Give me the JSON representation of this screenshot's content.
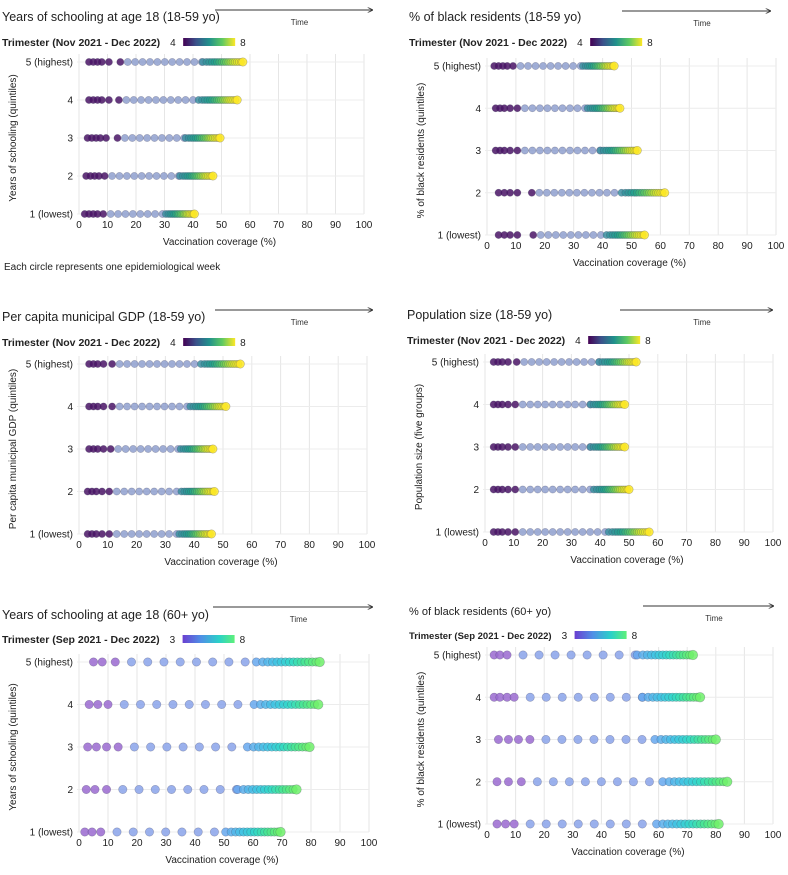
{
  "note": "Each circle represents one epidemiological week",
  "time_label": "Time",
  "chart_data": [
    {
      "type": "scatter",
      "title": "Years of schooling at age 18 (18-59 yo)",
      "ylabel": "Years of schooling (quintiles)",
      "xlabel": "Vaccination coverage (%)",
      "legend_title": "Trimester (Nov 2021 - Dec 2022)",
      "legend_min": "4",
      "legend_max": "8",
      "palette": "viridis",
      "xlim": [
        0,
        100
      ],
      "xticks": [
        0,
        10,
        20,
        30,
        40,
        50,
        60,
        70,
        80,
        90,
        100
      ],
      "categories": [
        "5 (highest)",
        "4",
        "3",
        "2",
        "1 (lowest)"
      ],
      "series": [
        {
          "name": "5 (highest)",
          "start": 3.5,
          "end": 57.5,
          "early": [
            3.5,
            5,
            6.5,
            8,
            10.5,
            14.5
          ]
        },
        {
          "name": "4",
          "start": 3.5,
          "end": 55.5,
          "early": [
            3.5,
            5,
            6.5,
            8,
            10.5,
            14
          ]
        },
        {
          "name": "3",
          "start": 3,
          "end": 49.5,
          "early": [
            3,
            4.5,
            6,
            7.5,
            9.5,
            13.5
          ]
        },
        {
          "name": "2",
          "start": 2.5,
          "end": 47,
          "early": [
            2.5,
            4,
            5.5,
            7,
            9
          ]
        },
        {
          "name": "1 (lowest)",
          "start": 2,
          "end": 40.5,
          "early": [
            2,
            3.5,
            5,
            6.5,
            8.5
          ]
        }
      ]
    },
    {
      "type": "scatter",
      "title": "% of black residents (18-59 yo)",
      "ylabel": "% of black residents (quintiles)",
      "xlabel": "Vaccination coverage (%)",
      "legend_title": "Trimester (Nov 2021 - Dec 2022)",
      "legend_min": "4",
      "legend_max": "8",
      "palette": "viridis",
      "xlim": [
        0,
        100
      ],
      "xticks": [
        0,
        10,
        20,
        30,
        40,
        50,
        60,
        70,
        80,
        90,
        100
      ],
      "categories": [
        "5 (highest)",
        "4",
        "3",
        "2",
        "1 (lowest)"
      ],
      "series": [
        {
          "name": "5 (highest)",
          "start": 2.5,
          "end": 44,
          "early": [
            2.5,
            4,
            5.5,
            7,
            9
          ]
        },
        {
          "name": "4",
          "start": 3,
          "end": 46,
          "early": [
            3,
            4.5,
            6,
            8,
            10.5
          ]
        },
        {
          "name": "3",
          "start": 3,
          "end": 52,
          "early": [
            3,
            4.5,
            6,
            8,
            10.5
          ]
        },
        {
          "name": "2",
          "start": 4,
          "end": 61.5,
          "early": [
            4,
            6,
            8,
            10.5,
            15.5
          ]
        },
        {
          "name": "1 (lowest)",
          "start": 4,
          "end": 54.5,
          "early": [
            4,
            6,
            8,
            10.5,
            16
          ]
        }
      ]
    },
    {
      "type": "scatter",
      "title": "Per capita municipal GDP (18-59 yo)",
      "ylabel": "Per capita municipal GDP (quintiles)",
      "xlabel": "Vaccination coverage (%)",
      "legend_title": "Trimester (Nov 2021 - Dec 2022)",
      "legend_min": "4",
      "legend_max": "8",
      "palette": "viridis",
      "xlim": [
        0,
        100
      ],
      "xticks": [
        0,
        10,
        20,
        30,
        40,
        50,
        60,
        70,
        80,
        90,
        100
      ],
      "categories": [
        "5 (highest)",
        "4",
        "3",
        "2",
        "1 (lowest)"
      ],
      "series": [
        {
          "name": "5 (highest)",
          "start": 3.5,
          "end": 56,
          "early": [
            3.5,
            5,
            6.5,
            8.5,
            11.5
          ]
        },
        {
          "name": "4",
          "start": 3.5,
          "end": 51,
          "early": [
            3.5,
            5,
            6.5,
            8.5,
            11.5
          ]
        },
        {
          "name": "3",
          "start": 3.5,
          "end": 46.5,
          "early": [
            3.5,
            5,
            6.5,
            8.5,
            11
          ]
        },
        {
          "name": "2",
          "start": 3,
          "end": 47,
          "early": [
            3,
            4.5,
            6,
            8,
            10.5
          ]
        },
        {
          "name": "1 (lowest)",
          "start": 3,
          "end": 46,
          "early": [
            3,
            4.5,
            6,
            8,
            10.5
          ]
        }
      ]
    },
    {
      "type": "scatter",
      "title": "Population size (18-59 yo)",
      "ylabel": "Population size (five groups)",
      "xlabel": "Vaccination coverage (%)",
      "legend_title": "Trimester (Nov 2021 - Dec 2022)",
      "legend_min": "4",
      "legend_max": "8",
      "palette": "viridis",
      "xlim": [
        0,
        100
      ],
      "xticks": [
        0,
        10,
        20,
        30,
        40,
        50,
        60,
        70,
        80,
        90,
        100
      ],
      "categories": [
        "5 (highest)",
        "4",
        "3",
        "2",
        "1 (lowest)"
      ],
      "series": [
        {
          "name": "5 (highest)",
          "start": 3,
          "end": 52.5,
          "early": [
            3,
            4.5,
            6,
            8,
            11
          ]
        },
        {
          "name": "4",
          "start": 3,
          "end": 48.5,
          "early": [
            3,
            4.5,
            6,
            8,
            10.5
          ]
        },
        {
          "name": "3",
          "start": 3,
          "end": 48.5,
          "early": [
            3,
            4.5,
            6,
            8,
            10.5
          ]
        },
        {
          "name": "2",
          "start": 3,
          "end": 50,
          "early": [
            3,
            4.5,
            6,
            8,
            10.5
          ]
        },
        {
          "name": "1 (lowest)",
          "start": 3,
          "end": 57,
          "early": [
            3,
            4.5,
            6,
            8,
            10.5
          ]
        }
      ]
    },
    {
      "type": "scatter",
      "title": "Years of schooling at age 18 (60+ yo)",
      "ylabel": "Years of schooling (quintiles)",
      "xlabel": "Vaccination coverage (%)",
      "legend_title": "Trimester (Sep 2021 - Dec 2022)",
      "legend_min": "3",
      "legend_max": "8",
      "palette": "cool",
      "xlim": [
        0,
        100
      ],
      "xticks": [
        0,
        10,
        20,
        30,
        40,
        50,
        60,
        70,
        80,
        90,
        100
      ],
      "categories": [
        "5 (highest)",
        "4",
        "3",
        "2",
        "1 (lowest)"
      ],
      "series": [
        {
          "name": "5 (highest)",
          "start": 5,
          "end": 83,
          "early": [
            5,
            8,
            12.5
          ]
        },
        {
          "name": "4",
          "start": 3.5,
          "end": 82.5,
          "early": [
            3.5,
            6.5,
            10
          ]
        },
        {
          "name": "3",
          "start": 3,
          "end": 79.5,
          "early": [
            3,
            6,
            9.5,
            13.5
          ]
        },
        {
          "name": "2",
          "start": 2.5,
          "end": 75,
          "early": [
            2.5,
            5.5,
            9.5
          ]
        },
        {
          "name": "1 (lowest)",
          "start": 2,
          "end": 69.5,
          "early": [
            2,
            4.5,
            7.5
          ]
        }
      ]
    },
    {
      "type": "scatter",
      "title": "% of black residents (60+ yo)",
      "ylabel": "% of black residents (quintiles)",
      "xlabel": "Vaccination coverage (%)",
      "legend_title": "Trimester (Sep 2021 - Dec 2022)",
      "legend_min": "3",
      "legend_max": "8",
      "palette": "cool",
      "xlim": [
        0,
        100
      ],
      "xticks": [
        0,
        10,
        20,
        30,
        40,
        50,
        60,
        70,
        80,
        90,
        100
      ],
      "categories": [
        "5 (highest)",
        "4",
        "3",
        "2",
        "1 (lowest)"
      ],
      "series": [
        {
          "name": "5 (highest)",
          "start": 2.5,
          "end": 72,
          "early": [
            2.5,
            4.5,
            7
          ]
        },
        {
          "name": "4",
          "start": 2.5,
          "end": 74.5,
          "early": [
            2.5,
            4.5,
            7,
            9.5
          ]
        },
        {
          "name": "3",
          "start": 4,
          "end": 80,
          "early": [
            4,
            7.5,
            11,
            15
          ]
        },
        {
          "name": "2",
          "start": 3.5,
          "end": 84,
          "early": [
            3.5,
            7.5,
            12
          ]
        },
        {
          "name": "1 (lowest)",
          "start": 3.5,
          "end": 81,
          "early": [
            3.5,
            6.5,
            9.5
          ]
        }
      ]
    }
  ]
}
